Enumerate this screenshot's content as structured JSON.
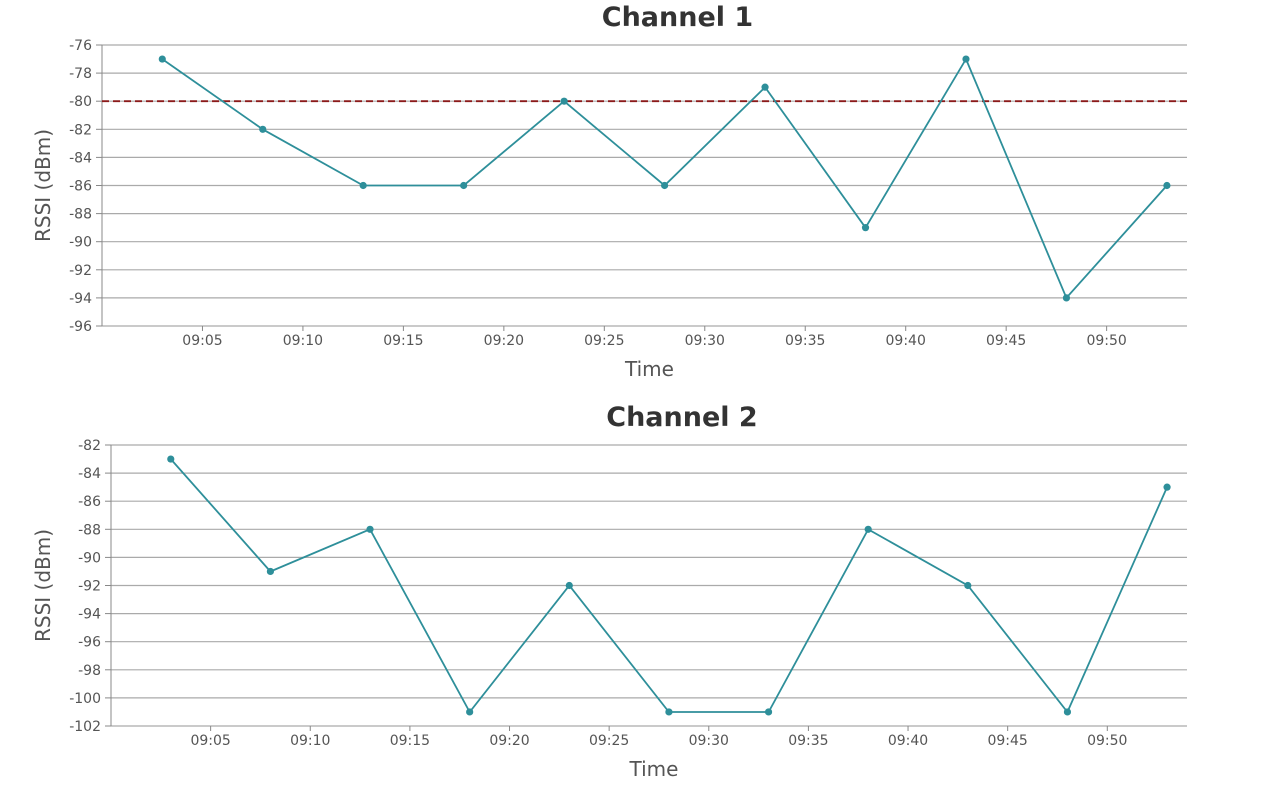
{
  "colors": {
    "series": "#2e8f9a",
    "threshold": "#8b1a1a"
  },
  "chart_data": [
    {
      "type": "line",
      "title": "Channel 1",
      "xlabel": "Time",
      "ylabel": "RSSI (dBm)",
      "x": [
        "09:03",
        "09:08",
        "09:13",
        "09:18",
        "09:23",
        "09:28",
        "09:33",
        "09:38",
        "09:43",
        "09:48",
        "09:53"
      ],
      "series": [
        {
          "values": [
            -77,
            -82,
            -86,
            -86,
            -80,
            -86,
            -79,
            -89,
            -77,
            -94,
            -86
          ]
        }
      ],
      "x_ticks": [
        "09:05",
        "09:10",
        "09:15",
        "09:20",
        "09:25",
        "09:30",
        "09:35",
        "09:40",
        "09:45",
        "09:50"
      ],
      "xlim": [
        "09:00",
        "09:54"
      ],
      "ylim": [
        -96,
        -76
      ],
      "y_ticks": [
        -96,
        -94,
        -92,
        -90,
        -88,
        -86,
        -84,
        -82,
        -80,
        -78,
        -76
      ],
      "threshold": -80,
      "grid": true,
      "legend": "none"
    },
    {
      "type": "line",
      "title": "Channel 2",
      "xlabel": "Time",
      "ylabel": "RSSI (dBm)",
      "x": [
        "09:03",
        "09:08",
        "09:13",
        "09:18",
        "09:23",
        "09:28",
        "09:33",
        "09:38",
        "09:43",
        "09:48",
        "09:53"
      ],
      "series": [
        {
          "values": [
            -83,
            -91,
            -88,
            -101,
            -92,
            -101,
            -101,
            -88,
            -92,
            -101,
            -85
          ]
        }
      ],
      "x_ticks": [
        "09:05",
        "09:10",
        "09:15",
        "09:20",
        "09:25",
        "09:30",
        "09:35",
        "09:40",
        "09:45",
        "09:50"
      ],
      "xlim": [
        "09:00",
        "09:54"
      ],
      "ylim": [
        -102,
        -82
      ],
      "y_ticks": [
        -102,
        -100,
        -98,
        -96,
        -94,
        -92,
        -90,
        -88,
        -86,
        -84,
        -82
      ],
      "threshold": null,
      "grid": true,
      "legend": "none"
    }
  ]
}
